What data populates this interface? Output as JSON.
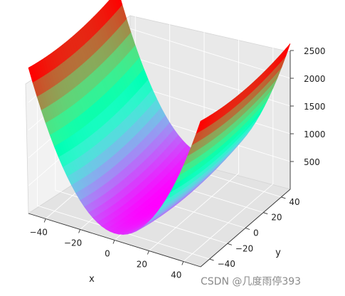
{
  "chart_data": {
    "type": "surface",
    "function": "z = x^2 + y^2 / 20",
    "x_range": [
      -50,
      50
    ],
    "y_range": [
      -50,
      50
    ],
    "z_range": [
      0,
      2500
    ],
    "colormap": "rainbow",
    "grid": true,
    "xlabel": "x",
    "ylabel": "y",
    "zlabel": "",
    "x_ticks": [
      -40,
      -20,
      0,
      20,
      40
    ],
    "y_ticks": [
      -40,
      -20,
      0,
      20,
      40
    ],
    "z_ticks": [
      500,
      1000,
      1500,
      2000,
      2500
    ],
    "x_tick_labels": [
      "−40",
      "−20",
      "0",
      "20",
      "40"
    ],
    "y_tick_labels": [
      "−40",
      "−20",
      "0",
      "20",
      "40"
    ],
    "z_tick_labels": [
      "500",
      "1000",
      "1500",
      "2000",
      "2500"
    ]
  },
  "watermark": "CSDN @几度雨停393"
}
